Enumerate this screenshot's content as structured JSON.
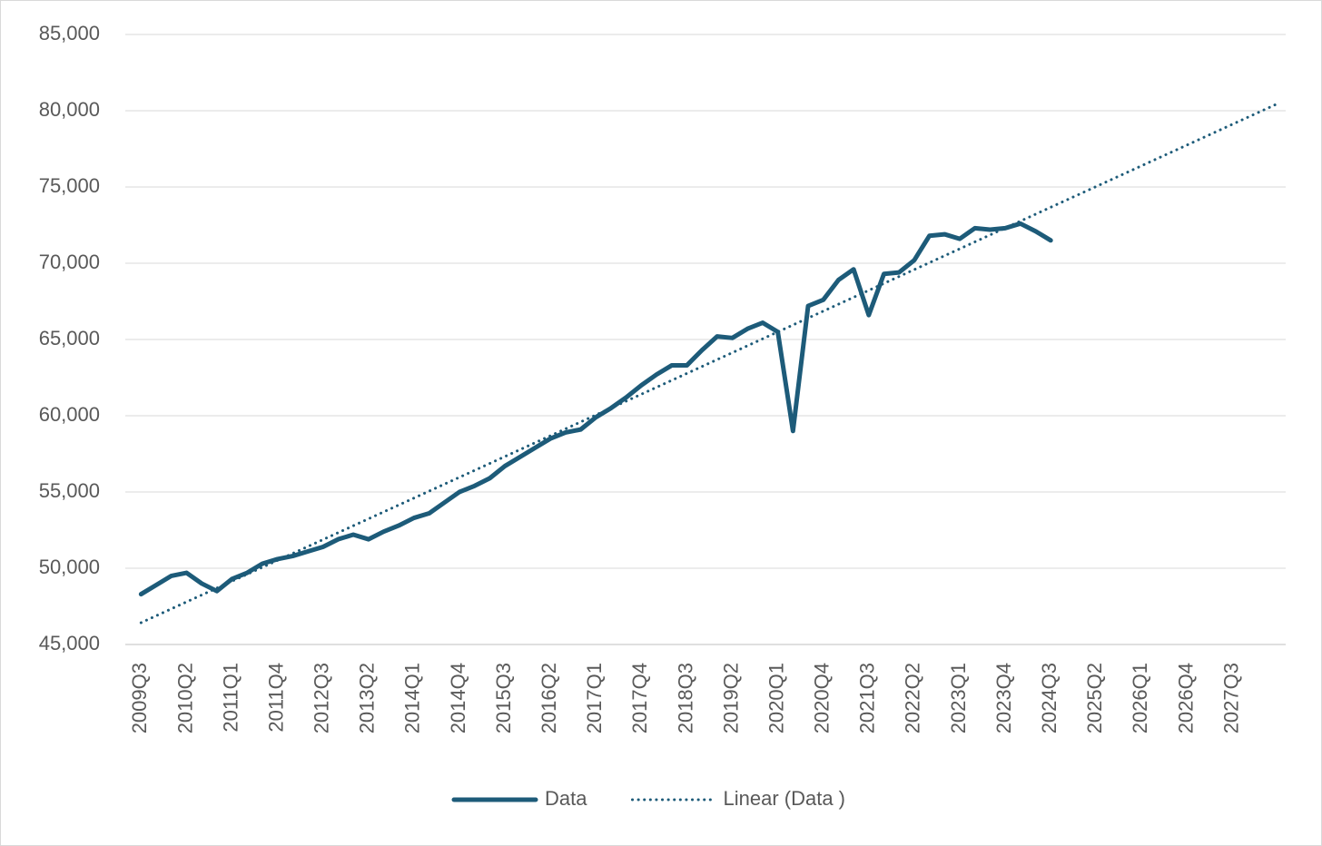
{
  "chart_data": {
    "type": "line",
    "categories": [
      "2009Q3",
      null,
      null,
      "2010Q2",
      null,
      null,
      "2011Q1",
      null,
      null,
      "2011Q4",
      null,
      null,
      "2012Q3",
      null,
      null,
      "2013Q2",
      null,
      null,
      "2014Q1",
      null,
      null,
      "2014Q4",
      null,
      null,
      "2015Q3",
      null,
      null,
      "2016Q2",
      null,
      null,
      "2017Q1",
      null,
      null,
      "2017Q4",
      null,
      null,
      "2018Q3",
      null,
      null,
      "2019Q2",
      null,
      null,
      "2020Q1",
      null,
      null,
      "2020Q4",
      null,
      null,
      "2021Q3",
      null,
      null,
      "2022Q2",
      null,
      null,
      "2023Q1",
      null,
      null,
      "2023Q4",
      null,
      null,
      "2024Q3",
      null,
      null,
      "2025Q2",
      null,
      null,
      "2026Q1",
      null,
      null,
      "2026Q4",
      null,
      null,
      "2027Q3",
      null,
      null,
      null
    ],
    "series": [
      {
        "name": "Data",
        "color": "#1d5b79",
        "style": "solid",
        "values": [
          48300,
          48900,
          49500,
          49700,
          49000,
          48500,
          49300,
          49700,
          50300,
          50600,
          50800,
          51100,
          51400,
          51900,
          52200,
          51900,
          52400,
          52800,
          53300,
          53600,
          54300,
          55000,
          55400,
          55900,
          56700,
          57300,
          57900,
          58500,
          58900,
          59100,
          59900,
          60500,
          61200,
          62000,
          62700,
          63300,
          63300,
          64300,
          65200,
          65100,
          65700,
          66100,
          65500,
          59000,
          67200,
          67600,
          68900,
          69600,
          66600,
          69300,
          69400,
          70200,
          71800,
          71900,
          71600,
          72300,
          72200,
          72300,
          72600,
          72100,
          71500,
          null,
          null,
          null,
          null,
          null,
          null,
          null,
          null,
          null,
          null,
          null,
          null,
          null,
          null,
          null
        ]
      },
      {
        "name": "Linear (Data )",
        "color": "#1d5b79",
        "style": "dotted",
        "values": [
          46430,
          46884,
          47338,
          47792,
          48246,
          48700,
          49154,
          49608,
          50062,
          50516,
          50970,
          51424,
          51878,
          52332,
          52786,
          53240,
          53694,
          54148,
          54602,
          55056,
          55510,
          55964,
          56418,
          56872,
          57326,
          57780,
          58234,
          58688,
          59142,
          59596,
          60050,
          60504,
          60958,
          61412,
          61866,
          62320,
          62774,
          63228,
          63682,
          64136,
          64590,
          65044,
          65498,
          65952,
          66406,
          66860,
          67314,
          67768,
          68222,
          68676,
          69130,
          69584,
          70038,
          70492,
          70946,
          71400,
          71854,
          72308,
          72762,
          73216,
          73670,
          74124,
          74578,
          75032,
          75486,
          75940,
          76394,
          76848,
          77302,
          77756,
          78210,
          78664,
          79118,
          79572,
          80026,
          80480
        ]
      }
    ],
    "ylim": [
      45000,
      85000
    ],
    "yticks": [
      {
        "value": 45000,
        "label": "45,000"
      },
      {
        "value": 50000,
        "label": "50,000"
      },
      {
        "value": 55000,
        "label": "55,000"
      },
      {
        "value": 60000,
        "label": "60,000"
      },
      {
        "value": 65000,
        "label": "65,000"
      },
      {
        "value": 70000,
        "label": "70,000"
      },
      {
        "value": 75000,
        "label": "75,000"
      },
      {
        "value": 80000,
        "label": "80,000"
      },
      {
        "value": 85000,
        "label": "85,000"
      }
    ],
    "grid": true,
    "legend": "bottom"
  }
}
